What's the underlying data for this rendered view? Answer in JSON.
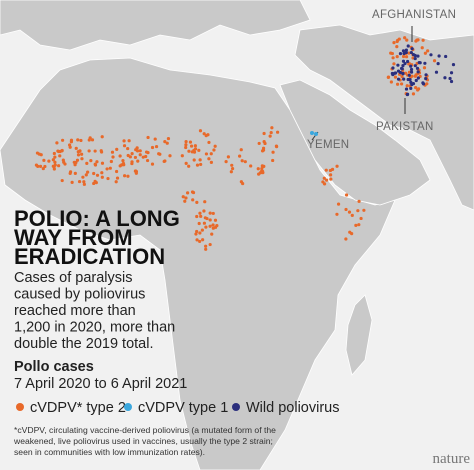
{
  "map": {
    "labels": {
      "afghanistan": "AFGHANISTAN",
      "pakistan": "PAKISTAN",
      "yemen": "YEMEN"
    },
    "title_lines": [
      "POLIO: A LONG",
      "WAY FROM",
      "ERADICATION"
    ],
    "subtitle_lines": [
      "Cases of paralysis",
      "caused by poliovirus",
      "reached more than",
      "1,200 in 2020, more than",
      "double the 2019 total."
    ],
    "legend": {
      "title": "Pollo cases",
      "period": "7 April 2020 to 6 April 2021",
      "items": [
        {
          "name": "cVDPV* type 2",
          "color": "#e8692a"
        },
        {
          "name": "cVDPV type 1",
          "color": "#3ba7dd"
        },
        {
          "name": "Wild poliovirus",
          "color": "#2b2f7d"
        }
      ]
    },
    "footnote_lines": [
      "*cVDPV, circulating vaccine-derived poliovirus (a mutated form of the",
      "weakened, live poliovirus used in vaccines, usually the type 2 strain;",
      "seen in communities with low immunization rates)."
    ],
    "logo": "nature"
  }
}
